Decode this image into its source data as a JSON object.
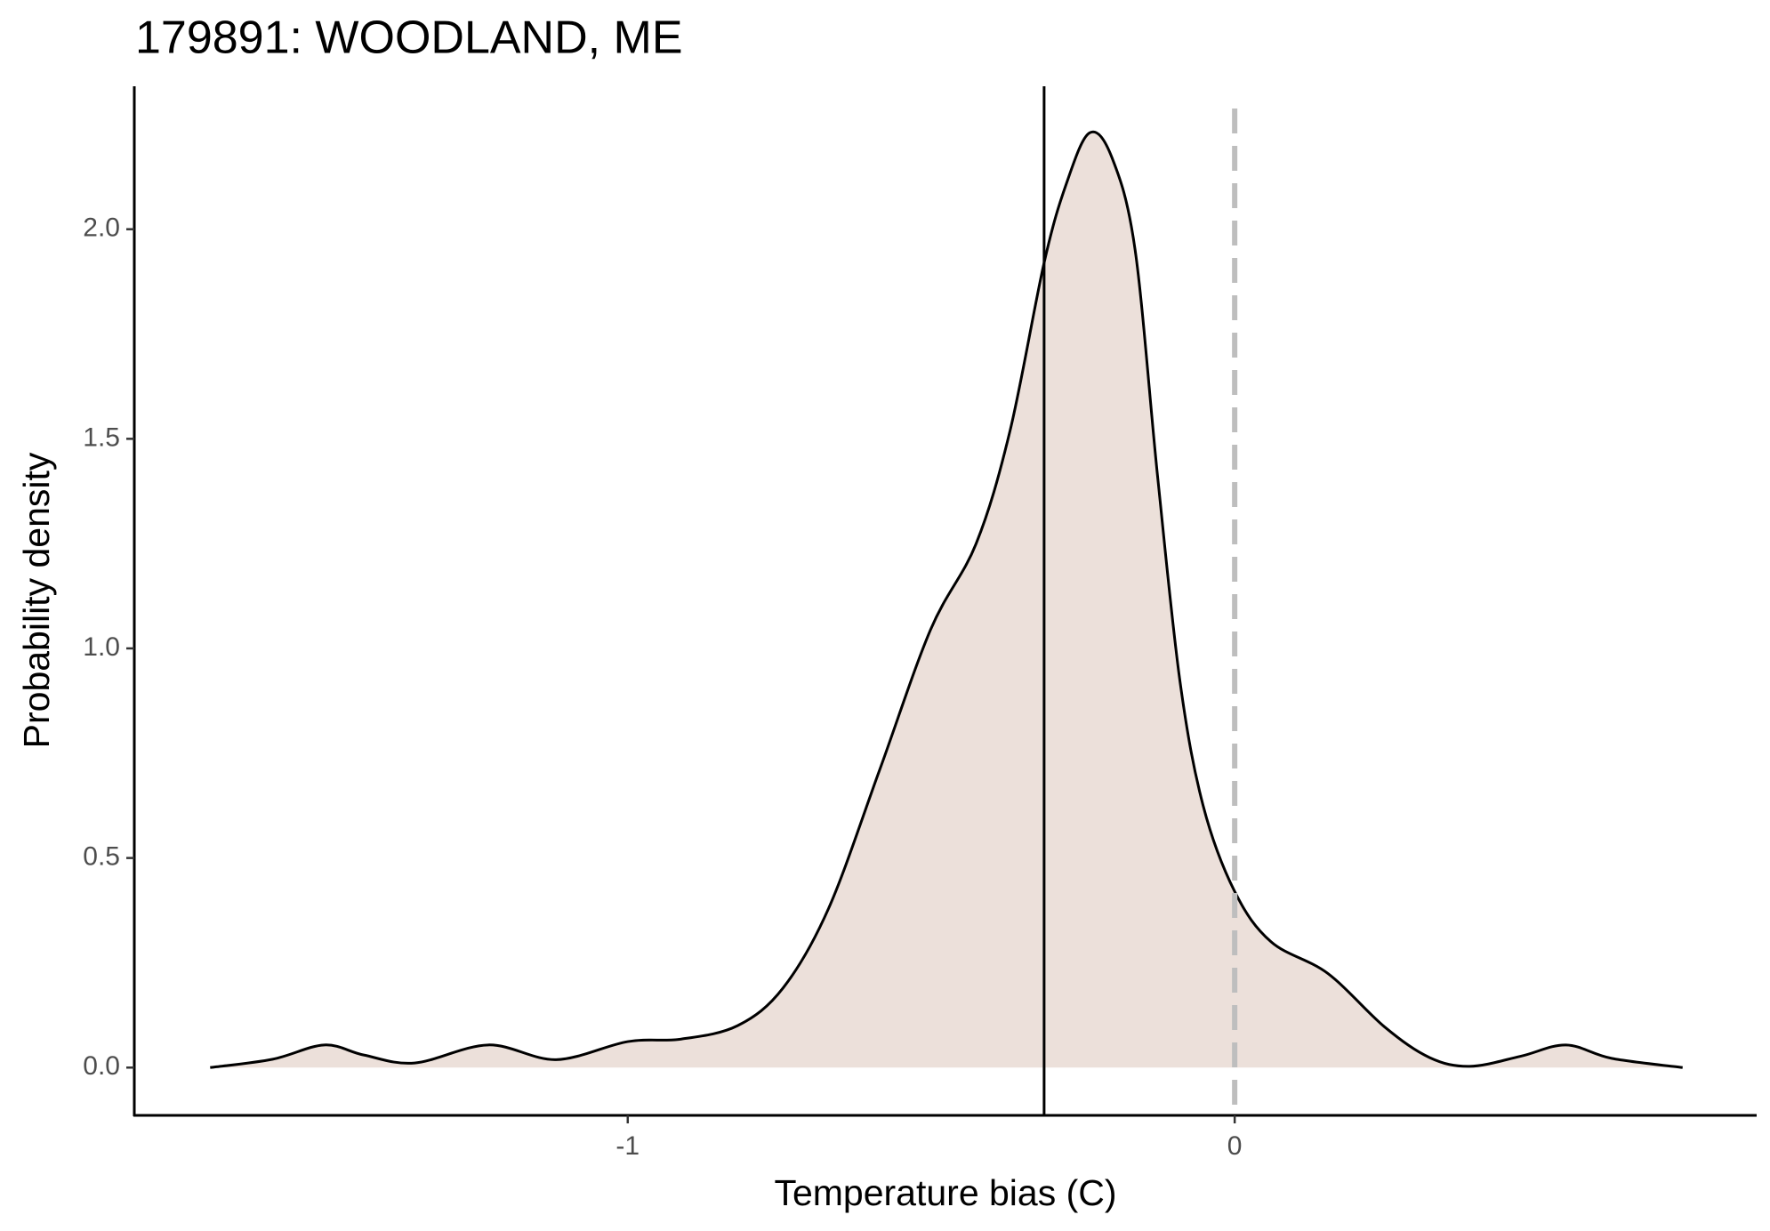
{
  "chart_data": {
    "type": "density",
    "title": "179891: WOODLAND, ME",
    "xlabel": "Temperature bias (C)",
    "ylabel": "Probability density",
    "x": [
      -1.688,
      -1.585,
      -1.5,
      -1.435,
      -1.351,
      -1.23,
      -1.118,
      -1.0,
      -0.912,
      -0.819,
      -0.744,
      -0.669,
      -0.585,
      -0.501,
      -0.426,
      -0.37,
      -0.314,
      -0.277,
      -0.239,
      -0.202,
      -0.164,
      -0.127,
      -0.09,
      -0.052,
      0,
      0.06,
      0.153,
      0.247,
      0.321,
      0.387,
      0.471,
      0.546,
      0.621,
      0.738
    ],
    "values": [
      0,
      0.02,
      0.054,
      0.03,
      0.011,
      0.054,
      0.019,
      0.062,
      0.068,
      0.1,
      0.19,
      0.38,
      0.71,
      1.045,
      1.25,
      1.52,
      1.92,
      2.11,
      2.23,
      2.17,
      1.95,
      1.41,
      0.92,
      0.625,
      0.42,
      0.3,
      0.225,
      0.097,
      0.024,
      0.003,
      0.027,
      0.054,
      0.022,
      0
    ],
    "color": "#ece0da",
    "line_color": "#000000",
    "vline": -0.314,
    "reference_line": 0,
    "reference_color": "#bebebe",
    "xlim": [
      -1.813,
      0.86
    ],
    "ylim": [
      -0.114,
      2.341
    ],
    "xticks": [
      -1,
      0
    ],
    "yticks": [
      {
        "value": 0,
        "label": "0.0"
      },
      0.5,
      {
        "value": 1,
        "label": "1.0"
      },
      1.5,
      {
        "value": 2,
        "label": "2.0"
      }
    ]
  }
}
